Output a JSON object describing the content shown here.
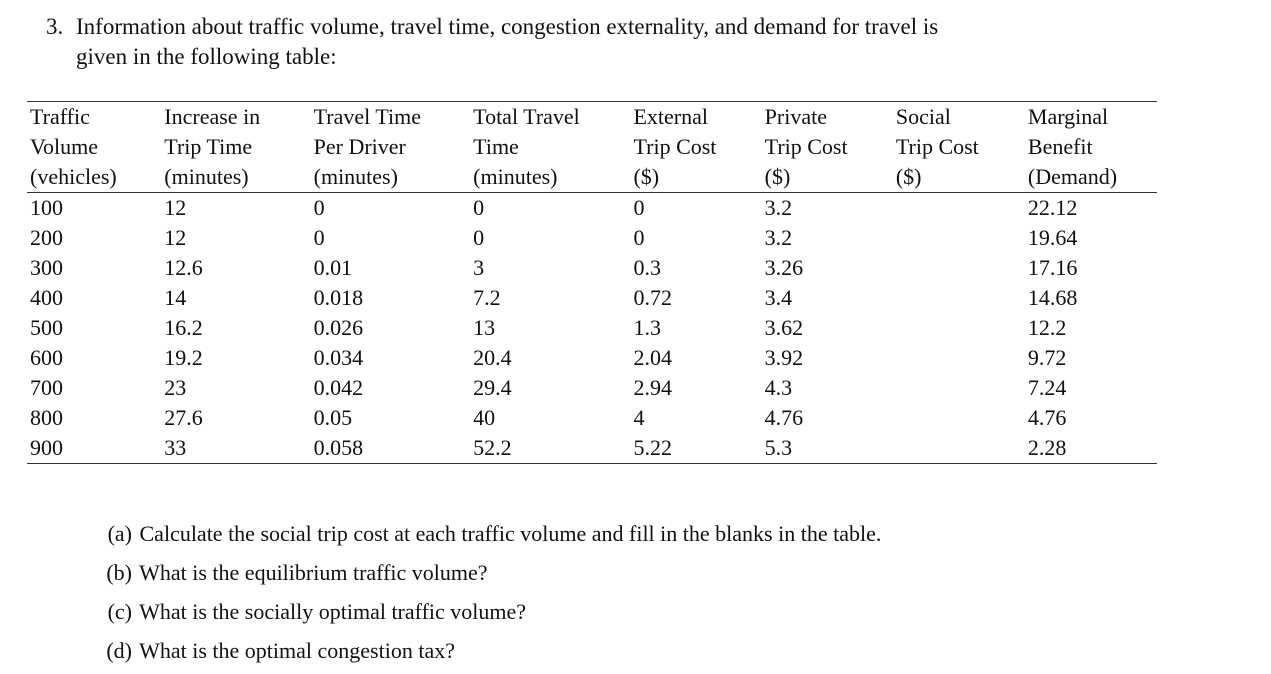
{
  "problem": {
    "number": "3.",
    "intro_line1": "Information about traffic volume, travel time, congestion externality, and demand for travel is",
    "intro_line2": "given in the following table:"
  },
  "table": {
    "headers": [
      [
        "Traffic",
        "Volume",
        "(vehicles)"
      ],
      [
        "Increase in",
        "Trip Time",
        "(minutes)"
      ],
      [
        "Travel Time",
        "Per Driver",
        "(minutes)"
      ],
      [
        "Total Travel",
        "Time",
        "(minutes)"
      ],
      [
        "External",
        "Trip Cost",
        "($)"
      ],
      [
        "Private",
        "Trip Cost",
        "($)"
      ],
      [
        "Social",
        "Trip Cost",
        "($)"
      ],
      [
        "Marginal",
        "Benefit",
        "(Demand)"
      ]
    ],
    "rows": [
      [
        "100",
        "12",
        "0",
        "0",
        "0",
        "3.2",
        "",
        "22.12"
      ],
      [
        "200",
        "12",
        "0",
        "0",
        "0",
        "3.2",
        "",
        "19.64"
      ],
      [
        "300",
        "12.6",
        "0.01",
        "3",
        "0.3",
        "3.26",
        "",
        "17.16"
      ],
      [
        "400",
        "14",
        "0.018",
        "7.2",
        "0.72",
        "3.4",
        "",
        "14.68"
      ],
      [
        "500",
        "16.2",
        "0.026",
        "13",
        "1.3",
        "3.62",
        "",
        "12.2"
      ],
      [
        "600",
        "19.2",
        "0.034",
        "20.4",
        "2.04",
        "3.92",
        "",
        "9.72"
      ],
      [
        "700",
        "23",
        "0.042",
        "29.4",
        "2.94",
        "4.3",
        "",
        "7.24"
      ],
      [
        "800",
        "27.6",
        "0.05",
        "40",
        "4",
        "4.76",
        "",
        "4.76"
      ],
      [
        "900",
        "33",
        "0.058",
        "52.2",
        "5.22",
        "5.3",
        "",
        "2.28"
      ]
    ]
  },
  "questions": [
    {
      "label": "(a)",
      "text": "Calculate the social trip cost at each traffic volume and fill in the blanks in the table."
    },
    {
      "label": "(b)",
      "text": "What is the equilibrium traffic volume?"
    },
    {
      "label": "(c)",
      "text": "What is the socially optimal traffic volume?"
    },
    {
      "label": "(d)",
      "text": "What is the optimal congestion tax?"
    }
  ]
}
